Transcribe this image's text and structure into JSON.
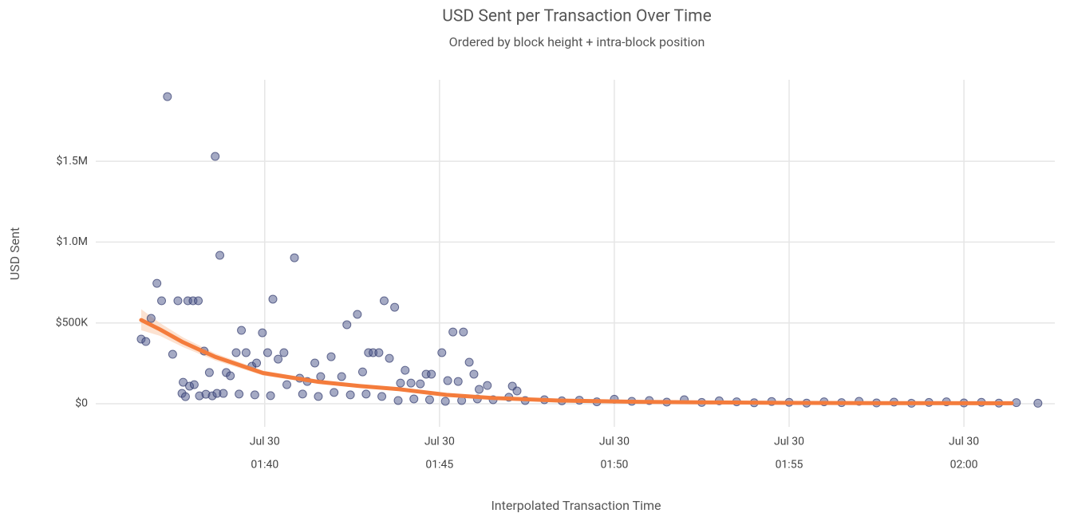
{
  "chart_data": {
    "type": "scatter",
    "title": "USD Sent per Transaction Over Time",
    "subtitle": "Ordered by block height + intra-block position",
    "x_label": "Interpolated Transaction Time",
    "y_label": "USD Sent",
    "grid": true,
    "xlim": [
      "01:35:10",
      "02:02:36"
    ],
    "xticks": [
      {
        "value": "01:40:00",
        "label": [
          "Jul 30",
          "01:40"
        ]
      },
      {
        "value": "01:45:00",
        "label": [
          "Jul 30",
          "01:45"
        ]
      },
      {
        "value": "01:50:00",
        "label": [
          "Jul 30",
          "01:50"
        ]
      },
      {
        "value": "01:55:00",
        "label": [
          "Jul 30",
          "01:55"
        ]
      },
      {
        "value": "02:00:00",
        "label": [
          "Jul 30",
          "02:00"
        ]
      }
    ],
    "ylim": [
      -143000,
      2004000
    ],
    "yticks": [
      {
        "value": 0,
        "label": "$0"
      },
      {
        "value": 500000,
        "label": "$500K"
      },
      {
        "value": 1000000,
        "label": "$1.0M"
      },
      {
        "value": 1500000,
        "label": "$1.5M"
      }
    ],
    "points": {
      "color": "#4b5689",
      "x": [
        "01:36:28",
        "01:36:36",
        "01:36:45",
        "01:36:55",
        "01:37:03",
        "01:37:13",
        "01:37:22",
        "01:37:31",
        "01:37:38",
        "01:37:40",
        "01:37:44",
        "01:37:48",
        "01:37:51",
        "01:37:57",
        "01:37:59",
        "01:38:06",
        "01:38:08",
        "01:38:16",
        "01:38:19",
        "01:38:25",
        "01:38:30",
        "01:38:35",
        "01:38:38",
        "01:38:43",
        "01:38:49",
        "01:38:54",
        "01:39:01",
        "01:39:11",
        "01:39:20",
        "01:39:28",
        "01:39:38",
        "01:39:46",
        "01:39:56",
        "01:40:05",
        "01:40:14",
        "01:40:23",
        "01:40:33",
        "01:40:38",
        "01:40:51",
        "01:41:00",
        "01:41:13",
        "01:41:26",
        "01:41:36",
        "01:41:54",
        "01:42:12",
        "01:42:21",
        "01:42:39",
        "01:42:48",
        "01:42:58",
        "01:43:06",
        "01:43:16",
        "01:43:25",
        "01:43:34",
        "01:43:43",
        "01:43:53",
        "01:44:01",
        "01:44:11",
        "01:44:27",
        "01:44:37",
        "01:44:46",
        "01:45:04",
        "01:45:14",
        "01:45:23",
        "01:45:32",
        "01:45:41",
        "01:45:51",
        "01:45:59",
        "01:46:08",
        "01:46:22",
        "01:47:05",
        "01:47:13",
        "01:39:16",
        "01:39:43",
        "01:40:10",
        "01:41:05",
        "01:41:32",
        "01:41:59",
        "01:42:27",
        "01:42:54",
        "01:43:21",
        "01:43:49",
        "01:44:16",
        "01:44:43",
        "01:45:10",
        "01:45:38",
        "01:46:05",
        "01:46:32",
        "01:46:59",
        "01:47:27",
        "01:48:00",
        "01:48:30",
        "01:49:00",
        "01:49:30",
        "01:50:00",
        "01:50:30",
        "01:51:00",
        "01:51:30",
        "01:52:00",
        "01:52:30",
        "01:53:00",
        "01:53:30",
        "01:54:00",
        "01:54:30",
        "01:55:00",
        "01:55:30",
        "01:56:00",
        "01:56:30",
        "01:57:00",
        "01:57:30",
        "01:58:00",
        "01:58:30",
        "01:59:00",
        "01:59:30",
        "02:00:00",
        "02:00:30",
        "02:01:00",
        "02:01:30",
        "02:02:07"
      ],
      "values": [
        400000,
        385000,
        528000,
        745000,
        637000,
        1900000,
        306000,
        637000,
        64000,
        133000,
        44000,
        637000,
        109000,
        637000,
        118000,
        637000,
        49000,
        326000,
        59000,
        193000,
        49000,
        1530000,
        64000,
        918000,
        64000,
        193000,
        173000,
        316000,
        454000,
        316000,
        232000,
        252000,
        439000,
        316000,
        647000,
        276000,
        316000,
        118000,
        903000,
        158000,
        138000,
        252000,
        168000,
        291000,
        168000,
        489000,
        553000,
        197000,
        316000,
        316000,
        316000,
        637000,
        281000,
        597000,
        128000,
        207000,
        128000,
        123000,
        183000,
        183000,
        316000,
        143000,
        444000,
        138000,
        444000,
        257000,
        183000,
        89000,
        113000,
        109000,
        79000,
        60000,
        55000,
        50000,
        60000,
        45000,
        70000,
        55000,
        60000,
        45000,
        20000,
        30000,
        25000,
        15000,
        20000,
        30000,
        25000,
        40000,
        20000,
        25000,
        18000,
        22000,
        12000,
        28000,
        15000,
        20000,
        10000,
        25000,
        8000,
        18000,
        12000,
        6000,
        14000,
        9000,
        4000,
        12000,
        7000,
        15000,
        5000,
        10000,
        3000,
        8000,
        12000,
        5000,
        9000,
        4000,
        7000,
        3000
      ]
    },
    "smooth": {
      "color": "#f47c3c",
      "band_color": "#fbd5bd",
      "x": [
        "01:36:28",
        "01:37:00",
        "01:37:40",
        "01:38:35",
        "01:39:57",
        "01:41:33",
        "01:42:42",
        "01:43:50",
        "01:45:12",
        "01:46:34",
        "01:48:24",
        "01:50:41",
        "01:52:58",
        "01:55:15",
        "01:57:32",
        "02:01:22"
      ],
      "values": [
        518000,
        460000,
        380000,
        290000,
        190000,
        135000,
        110000,
        90000,
        55000,
        35000,
        20000,
        12000,
        8000,
        5000,
        4000,
        3000
      ],
      "lower": [
        455000,
        420000,
        350000,
        268000,
        175000,
        122000,
        99000,
        80000,
        46000,
        27000,
        13000,
        6000,
        2000,
        -1000,
        -3000,
        -10000
      ],
      "upper": [
        585000,
        500000,
        410000,
        312000,
        205000,
        148000,
        121000,
        100000,
        64000,
        43000,
        27000,
        18000,
        14000,
        11000,
        11000,
        16000
      ]
    }
  }
}
